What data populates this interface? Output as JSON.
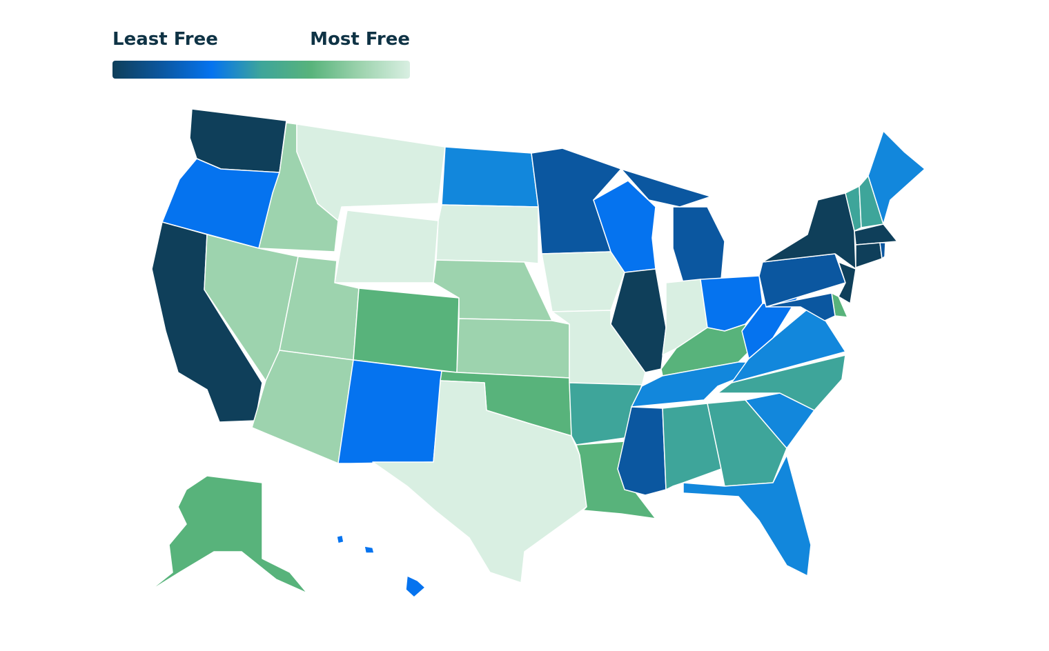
{
  "legend": {
    "min_label": "Least Free",
    "max_label": "Most Free",
    "gradient": [
      "#0f3f5a",
      "#0b57a0",
      "#0573ef",
      "#3ea59a",
      "#58b37b",
      "#9dd3ae",
      "#d9efe2"
    ]
  },
  "map": {
    "fills": [
      "#0f3f5a",
      "#0573ef",
      "#0f3f5a",
      "#9dd3ae",
      "#9dd3ae",
      "#d9efe2",
      "#d9efe2",
      "#9dd3ae",
      "#9dd3ae",
      "#58b37b",
      "#0573ef",
      "#1287dc",
      "#d9efe2",
      "#9dd3ae",
      "#9dd3ae",
      "#58b37b",
      "#d9efe2",
      "#0b57a0",
      "#d9efe2",
      "#d9efe2",
      "#3ea59a",
      "#58b37b",
      "#0573ef",
      "#0f3f5a",
      "#0b57a0",
      "#0b57a0",
      "#d9efe2",
      "#0573ef",
      "#58b37b",
      "#1287dc",
      "#0b57a0",
      "#3ea59a",
      "#3ea59a",
      "#1287dc",
      "#1287dc",
      "#3ea59a",
      "#1287dc",
      "#0573ef",
      "#0b57a0",
      "#0f3f5a",
      "#0f3f5a",
      "#58b37b",
      "#0b57a0",
      "#3ea59a",
      "#3ea59a",
      "#1287dc",
      "#0f3f5a",
      "#0f3f5a",
      "#0b57a0",
      "#58b37b",
      "#0573ef",
      "#0573ef",
      "#0573ef"
    ]
  }
}
